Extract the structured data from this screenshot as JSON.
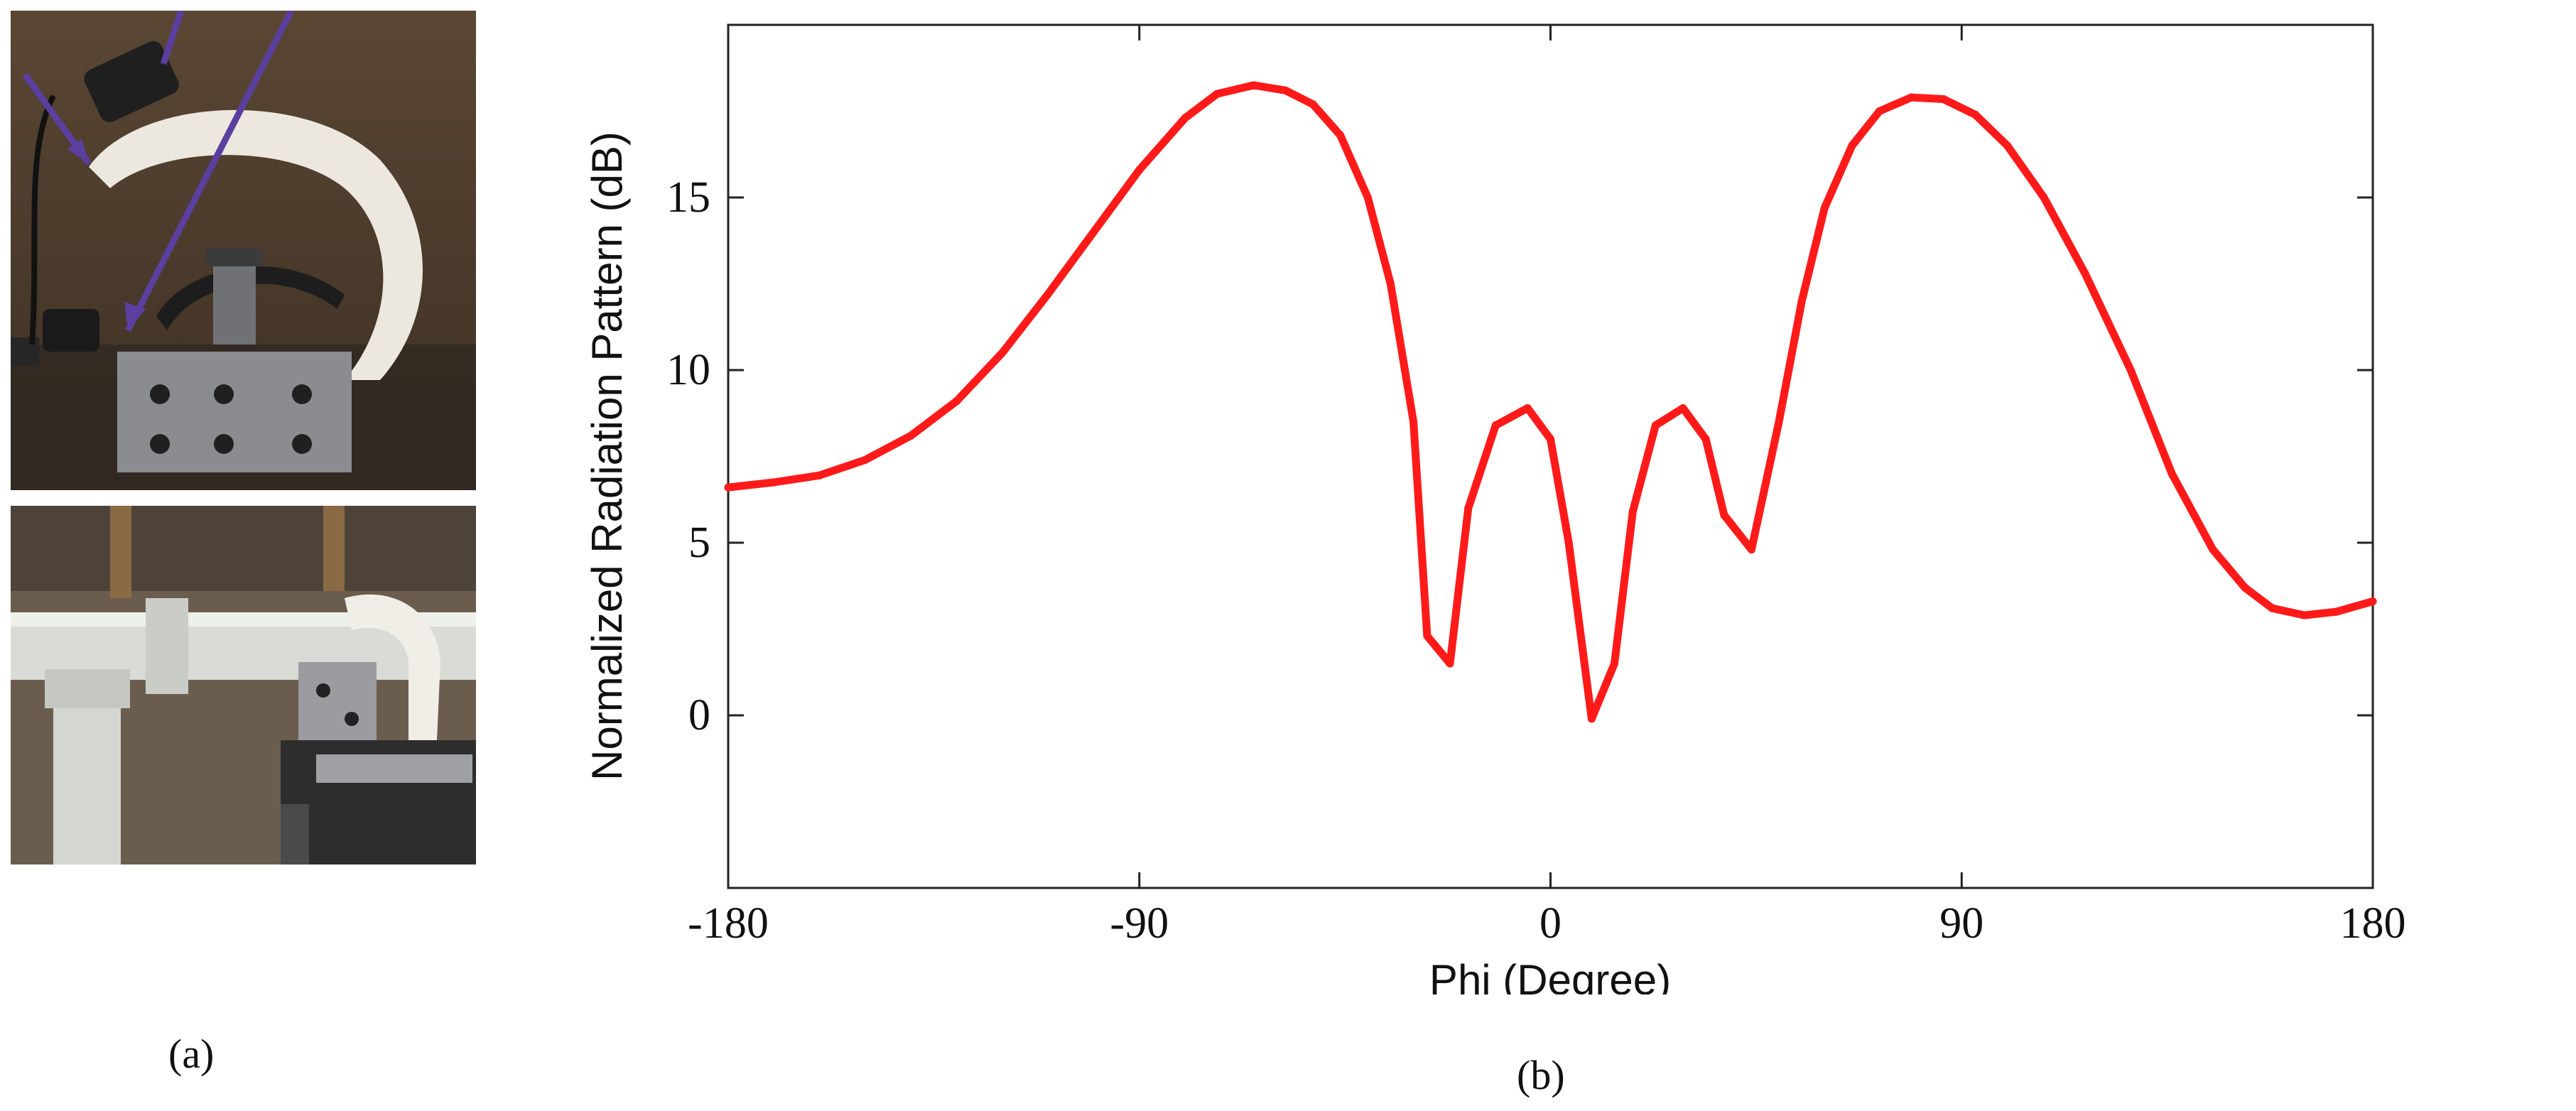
{
  "captions": {
    "a": "(a)",
    "b": "(b)"
  },
  "photos": [
    {
      "name": "rotating-arm-fixture-photo"
    },
    {
      "name": "pvc-pipe-mount-photo"
    }
  ],
  "colors": {
    "series": "#ff1a1a",
    "axis": "#222222",
    "background": "#ffffff"
  },
  "chart_data": {
    "type": "line",
    "xlabel": "Phi (Degree)",
    "ylabel": "Normalized Radiation Pattern (dB)",
    "xlim": [
      -180,
      180
    ],
    "ylim": [
      -5,
      20
    ],
    "xticks": [
      -180,
      -90,
      0,
      90,
      180
    ],
    "yticks": [
      0,
      5,
      10,
      15
    ],
    "grid": false,
    "series": [
      {
        "color": "#ff1a1a",
        "points": [
          [
            -180,
            6.6
          ],
          [
            -170,
            6.75
          ],
          [
            -160,
            6.95
          ],
          [
            -150,
            7.4
          ],
          [
            -140,
            8.1
          ],
          [
            -130,
            9.1
          ],
          [
            -120,
            10.5
          ],
          [
            -110,
            12.2
          ],
          [
            -100,
            14.0
          ],
          [
            -90,
            15.8
          ],
          [
            -80,
            17.3
          ],
          [
            -73,
            18.0
          ],
          [
            -65,
            18.25
          ],
          [
            -58,
            18.1
          ],
          [
            -52,
            17.7
          ],
          [
            -46,
            16.8
          ],
          [
            -40,
            15.0
          ],
          [
            -35,
            12.5
          ],
          [
            -30,
            8.5
          ],
          [
            -27,
            2.3
          ],
          [
            -22,
            1.5
          ],
          [
            -18,
            6.0
          ],
          [
            -12,
            8.4
          ],
          [
            -5,
            8.9
          ],
          [
            0,
            8.0
          ],
          [
            4,
            5.0
          ],
          [
            9,
            -0.1
          ],
          [
            14,
            1.5
          ],
          [
            18,
            5.9
          ],
          [
            23,
            8.4
          ],
          [
            29,
            8.9
          ],
          [
            34,
            8.0
          ],
          [
            38,
            5.8
          ],
          [
            44,
            4.8
          ],
          [
            50,
            8.5
          ],
          [
            55,
            12.0
          ],
          [
            60,
            14.7
          ],
          [
            66,
            16.5
          ],
          [
            72,
            17.5
          ],
          [
            79,
            17.9
          ],
          [
            86,
            17.85
          ],
          [
            93,
            17.4
          ],
          [
            100,
            16.5
          ],
          [
            108,
            15.0
          ],
          [
            117,
            12.8
          ],
          [
            127,
            10.0
          ],
          [
            136,
            7.0
          ],
          [
            145,
            4.8
          ],
          [
            152,
            3.7
          ],
          [
            158,
            3.1
          ],
          [
            165,
            2.9
          ],
          [
            172,
            3.0
          ],
          [
            180,
            3.3
          ]
        ]
      }
    ]
  }
}
